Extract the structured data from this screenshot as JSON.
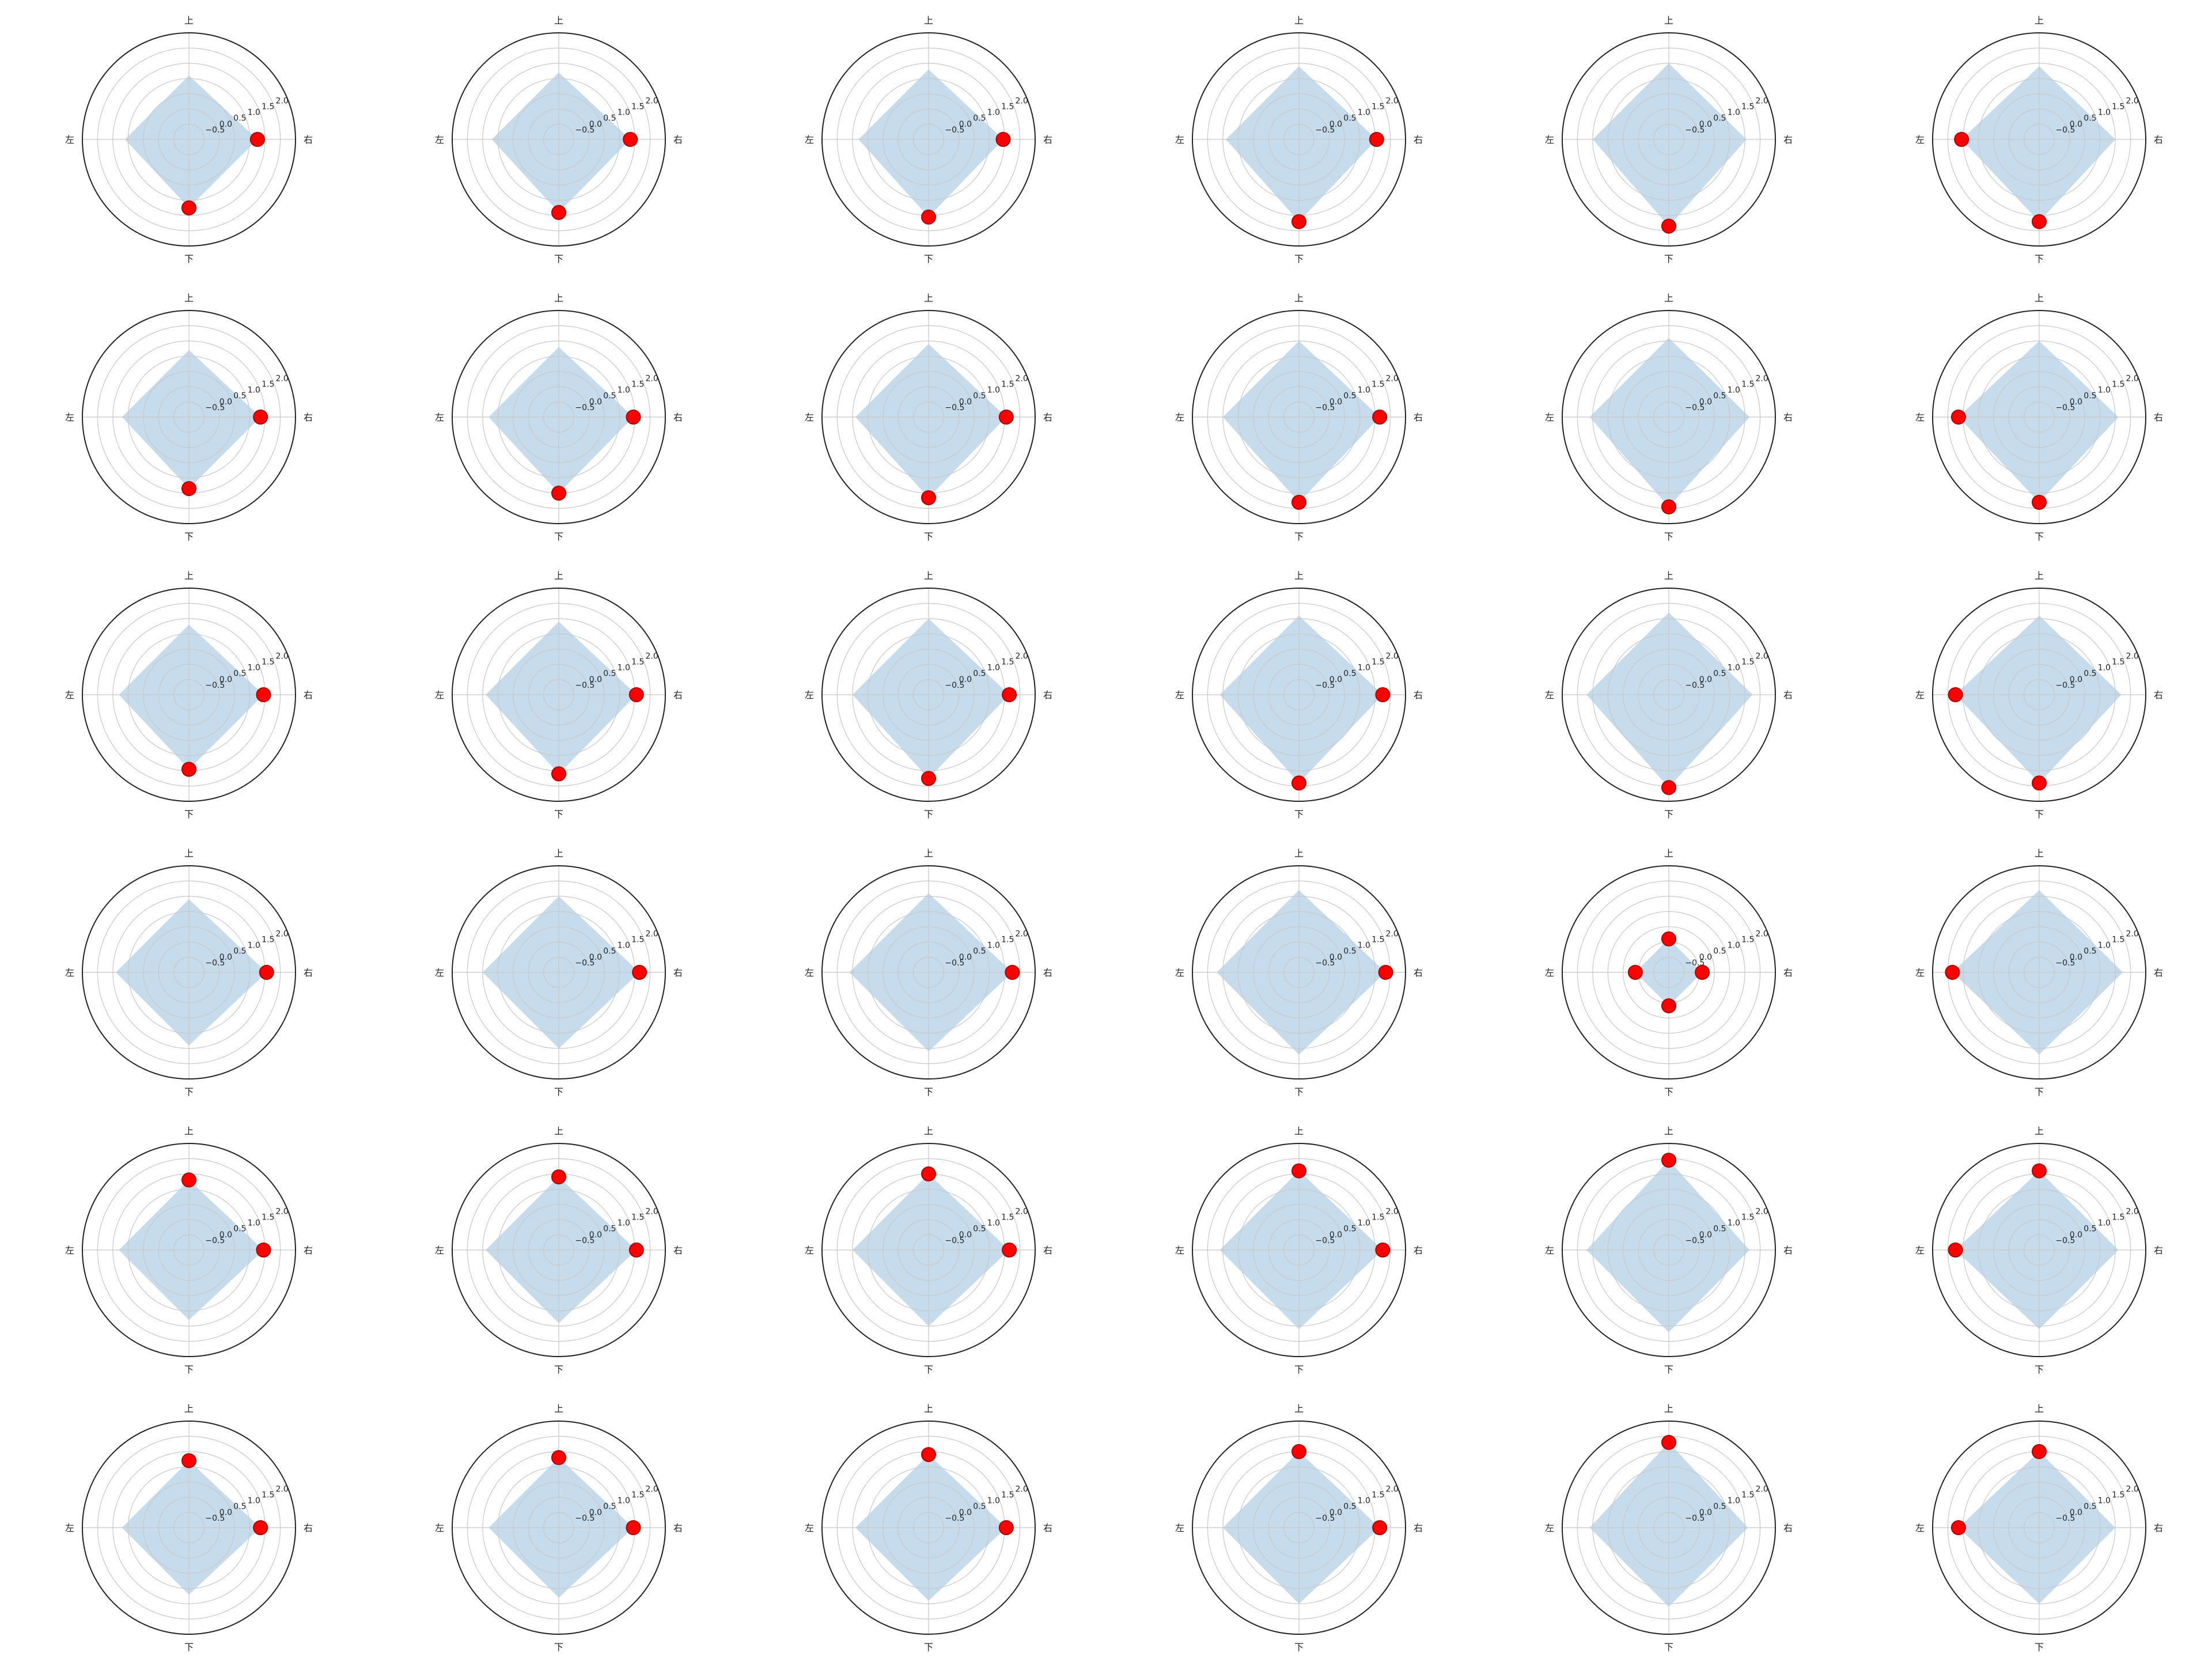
{
  "figure": {
    "background": "#ffffff",
    "fill_color": "#c6dbec",
    "marker_color": "#ff0000",
    "marker_edge": "#b00000",
    "grid_color": "#c8c8c8",
    "outline_color": "#222222"
  },
  "chart_data": {
    "type": "radar",
    "layout": "6x6 grid of polar subplots",
    "axes_labels": [
      "上",
      "右",
      "下",
      "左"
    ],
    "radial_range": [
      -1,
      2.5
    ],
    "radial_ticks": [
      -0.5,
      0.0,
      0.5,
      1.0,
      1.5,
      2.0
    ],
    "radial_tick_labels": [
      "−0.5",
      "0.0",
      "0.5",
      "1.0",
      "1.5",
      "2.0"
    ],
    "grid": true,
    "panels": [
      {
        "values": {
          "上": 1.1,
          "右": 1.25,
          "下": 1.25,
          "左": 1.1
        },
        "markers": [
          "右",
          "下"
        ]
      },
      {
        "values": {
          "上": 1.2,
          "右": 1.35,
          "下": 1.4,
          "左": 1.2
        },
        "markers": [
          "右",
          "下"
        ]
      },
      {
        "values": {
          "上": 1.3,
          "右": 1.45,
          "下": 1.55,
          "左": 1.3
        },
        "markers": [
          "右",
          "下"
        ]
      },
      {
        "values": {
          "上": 1.4,
          "右": 1.55,
          "下": 1.7,
          "左": 1.4
        },
        "markers": [
          "右",
          "下"
        ]
      },
      {
        "values": {
          "上": 1.5,
          "右": 1.55,
          "下": 1.85,
          "左": 1.5
        },
        "markers": [
          "下"
        ]
      },
      {
        "values": {
          "上": 1.4,
          "右": 1.5,
          "下": 1.7,
          "左": 1.55
        },
        "markers": [
          "下",
          "左"
        ]
      },
      {
        "values": {
          "上": 1.2,
          "右": 1.35,
          "下": 1.35,
          "左": 1.2
        },
        "markers": [
          "右",
          "下"
        ]
      },
      {
        "values": {
          "上": 1.3,
          "右": 1.45,
          "下": 1.5,
          "左": 1.3
        },
        "markers": [
          "右",
          "下"
        ]
      },
      {
        "values": {
          "上": 1.4,
          "右": 1.55,
          "下": 1.65,
          "左": 1.4
        },
        "markers": [
          "右",
          "下"
        ]
      },
      {
        "values": {
          "上": 1.5,
          "右": 1.65,
          "下": 1.8,
          "左": 1.5
        },
        "markers": [
          "右",
          "下"
        ]
      },
      {
        "values": {
          "上": 1.6,
          "右": 1.65,
          "下": 1.95,
          "左": 1.6
        },
        "markers": [
          "下"
        ]
      },
      {
        "values": {
          "上": 1.5,
          "右": 1.6,
          "下": 1.8,
          "左": 1.65
        },
        "markers": [
          "下",
          "左"
        ]
      },
      {
        "values": {
          "上": 1.3,
          "右": 1.45,
          "下": 1.45,
          "左": 1.3
        },
        "markers": [
          "右",
          "下"
        ]
      },
      {
        "values": {
          "上": 1.4,
          "右": 1.55,
          "下": 1.6,
          "左": 1.4
        },
        "markers": [
          "右",
          "下"
        ]
      },
      {
        "values": {
          "上": 1.5,
          "右": 1.65,
          "下": 1.75,
          "左": 1.5
        },
        "markers": [
          "右",
          "下"
        ]
      },
      {
        "values": {
          "上": 1.6,
          "右": 1.75,
          "下": 1.9,
          "左": 1.6
        },
        "markers": [
          "右",
          "下"
        ]
      },
      {
        "values": {
          "上": 1.7,
          "右": 1.75,
          "下": 2.05,
          "左": 1.7
        },
        "markers": [
          "下"
        ]
      },
      {
        "values": {
          "上": 1.6,
          "右": 1.7,
          "下": 1.9,
          "左": 1.75
        },
        "markers": [
          "下",
          "左"
        ]
      },
      {
        "values": {
          "上": 1.4,
          "右": 1.55,
          "下": 1.4,
          "左": 1.4
        },
        "markers": [
          "右"
        ]
      },
      {
        "values": {
          "上": 1.5,
          "右": 1.65,
          "下": 1.5,
          "左": 1.5
        },
        "markers": [
          "右"
        ]
      },
      {
        "values": {
          "上": 1.6,
          "右": 1.75,
          "下": 1.6,
          "左": 1.6
        },
        "markers": [
          "右"
        ]
      },
      {
        "values": {
          "上": 1.7,
          "右": 1.85,
          "下": 1.7,
          "左": 1.7
        },
        "markers": [
          "右"
        ]
      },
      {
        "values": {
          "上": 0.1,
          "右": 0.1,
          "下": 0.1,
          "左": 0.1
        },
        "markers": [
          "上",
          "右",
          "下",
          "左"
        ]
      },
      {
        "values": {
          "上": 1.7,
          "右": 1.75,
          "下": 1.7,
          "左": 1.85
        },
        "markers": [
          "左"
        ]
      },
      {
        "values": {
          "上": 1.3,
          "右": 1.45,
          "下": 1.3,
          "左": 1.3
        },
        "markers": [
          "上",
          "右"
        ]
      },
      {
        "values": {
          "上": 1.4,
          "右": 1.55,
          "下": 1.4,
          "左": 1.4
        },
        "markers": [
          "上",
          "右"
        ]
      },
      {
        "values": {
          "上": 1.5,
          "右": 1.65,
          "下": 1.5,
          "左": 1.5
        },
        "markers": [
          "上",
          "右"
        ]
      },
      {
        "values": {
          "上": 1.6,
          "右": 1.75,
          "下": 1.6,
          "左": 1.6
        },
        "markers": [
          "上",
          "右"
        ]
      },
      {
        "values": {
          "上": 1.95,
          "右": 1.65,
          "下": 1.7,
          "左": 1.7
        },
        "markers": [
          "上"
        ]
      },
      {
        "values": {
          "上": 1.6,
          "右": 1.6,
          "下": 1.6,
          "左": 1.75
        },
        "markers": [
          "上",
          "左"
        ]
      },
      {
        "values": {
          "上": 1.2,
          "右": 1.35,
          "下": 1.2,
          "左": 1.2
        },
        "markers": [
          "上",
          "右"
        ]
      },
      {
        "values": {
          "上": 1.3,
          "右": 1.45,
          "下": 1.3,
          "左": 1.3
        },
        "markers": [
          "上",
          "右"
        ]
      },
      {
        "values": {
          "上": 1.4,
          "右": 1.55,
          "下": 1.4,
          "左": 1.4
        },
        "markers": [
          "上",
          "右"
        ]
      },
      {
        "values": {
          "上": 1.5,
          "右": 1.65,
          "下": 1.5,
          "左": 1.5
        },
        "markers": [
          "上",
          "右"
        ]
      },
      {
        "values": {
          "上": 1.8,
          "右": 1.6,
          "下": 1.6,
          "左": 1.6
        },
        "markers": [
          "上"
        ]
      },
      {
        "values": {
          "上": 1.5,
          "右": 1.5,
          "下": 1.5,
          "左": 1.65
        },
        "markers": [
          "上",
          "左"
        ]
      }
    ]
  }
}
